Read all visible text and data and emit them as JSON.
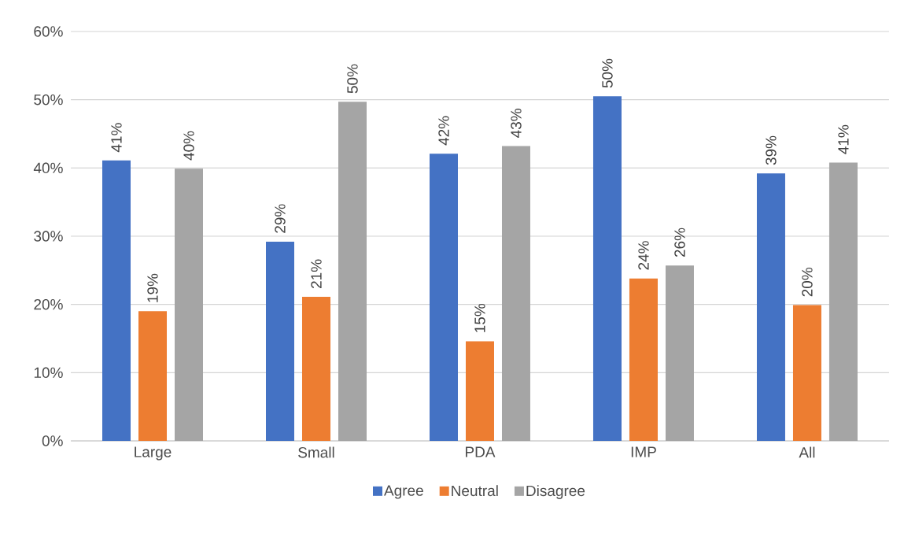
{
  "chart_data": {
    "type": "bar",
    "categories": [
      "Large",
      "Small",
      "PDA",
      "IMP",
      "All"
    ],
    "series": [
      {
        "name": "Agree",
        "color": "#4472c4",
        "values": [
          41.1,
          29.2,
          42.1,
          50.5,
          39.2
        ],
        "value_labels": [
          "41%",
          "29%",
          "42%",
          "50%",
          "39%"
        ]
      },
      {
        "name": "Neutral",
        "color": "#ed7d31",
        "values": [
          19.0,
          21.1,
          14.6,
          23.8,
          19.9
        ],
        "value_labels": [
          "19%",
          "21%",
          "15%",
          "24%",
          "20%"
        ]
      },
      {
        "name": "Disagree",
        "color": "#a5a5a5",
        "values": [
          39.9,
          49.7,
          43.2,
          25.7,
          40.8
        ],
        "value_labels": [
          "40%",
          "50%",
          "43%",
          "26%",
          "41%"
        ]
      }
    ],
    "ylim": [
      0,
      60
    ],
    "yticks": [
      {
        "value": 0,
        "label": "0%"
      },
      {
        "value": 10,
        "label": "10%"
      },
      {
        "value": 20,
        "label": "20%"
      },
      {
        "value": 30,
        "label": "30%"
      },
      {
        "value": 40,
        "label": "40%"
      },
      {
        "value": 50,
        "label": "50%"
      },
      {
        "value": 60,
        "label": "60%"
      }
    ],
    "grid": "y",
    "legend": "bottom"
  }
}
